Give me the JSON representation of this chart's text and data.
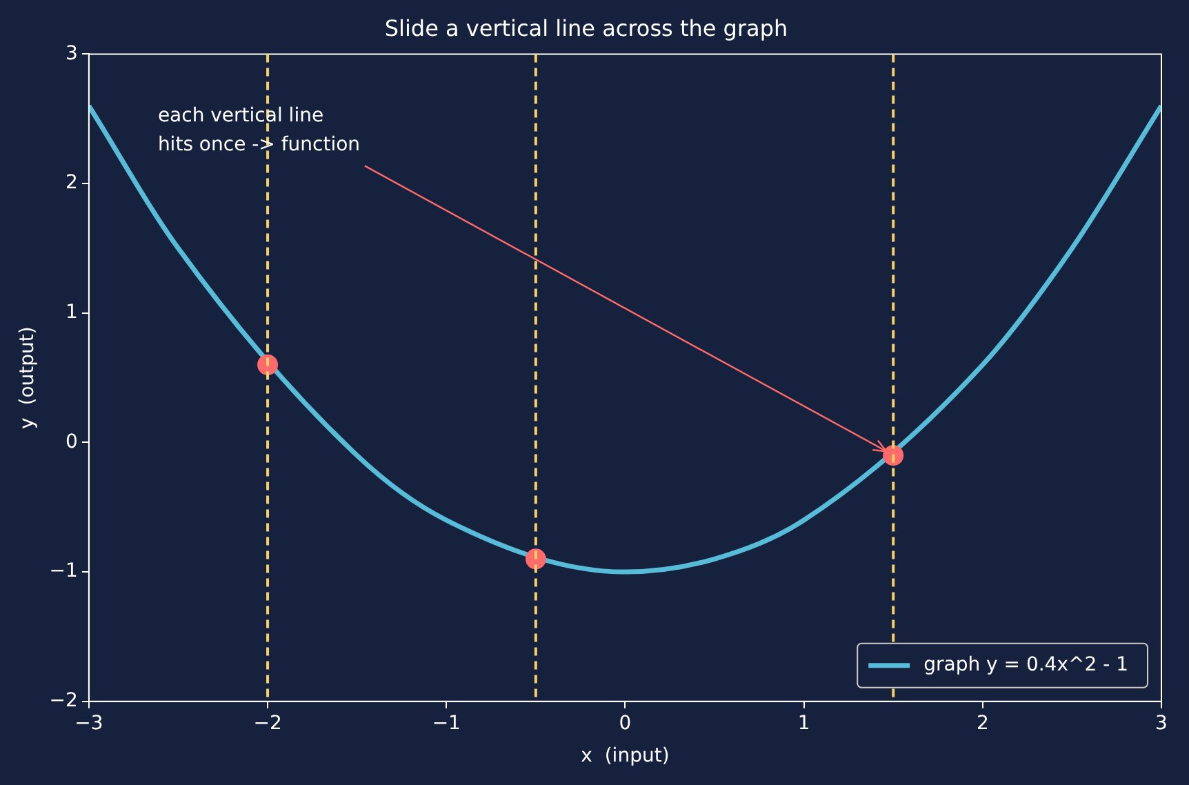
{
  "chart_data": {
    "type": "line",
    "title": "Slide a vertical line across the graph",
    "xlabel": "x  (input)",
    "ylabel": "y  (output)",
    "xlim": [
      -3,
      3
    ],
    "xticks": [
      -3,
      -2,
      -1,
      0,
      1,
      2,
      3
    ],
    "ylim": [
      -2,
      3
    ],
    "yticks": [
      -2,
      -1,
      0,
      1,
      2,
      3
    ],
    "grid": false,
    "legend": "bottom right",
    "series": [
      {
        "name": "graph y = 0.4x^2 - 1",
        "type": "line",
        "color": "#56bcd8",
        "marker": "none",
        "line_style": "solid",
        "x": [
          -3,
          -2.5,
          -1.5,
          -1,
          0,
          0.5,
          1,
          2,
          2.5,
          3
        ],
        "values": [
          2.6,
          1.5,
          -0.1,
          -0.6,
          -1,
          -0.9,
          -0.6,
          0.6,
          1.5,
          2.6
        ]
      },
      {
        "type": "scatter",
        "color": "#ff6b6b",
        "marker": "circle",
        "x": [
          -2,
          -0.5,
          1.5
        ],
        "values": [
          0.6,
          -0.9,
          -0.1
        ]
      }
    ],
    "ref_lines": [
      {
        "axis": "x",
        "value": -2,
        "color": "#f5d06a",
        "line_style": "dashed"
      },
      {
        "axis": "x",
        "value": -0.5,
        "color": "#f5d06a",
        "line_style": "dashed"
      },
      {
        "axis": "x",
        "value": 1.5,
        "color": "#f5d06a",
        "line_style": "dashed"
      }
    ],
    "annotations": [
      {
        "text": "each vertical line\nhits once -> function",
        "x": 1.5,
        "y": -0.1
      }
    ]
  }
}
